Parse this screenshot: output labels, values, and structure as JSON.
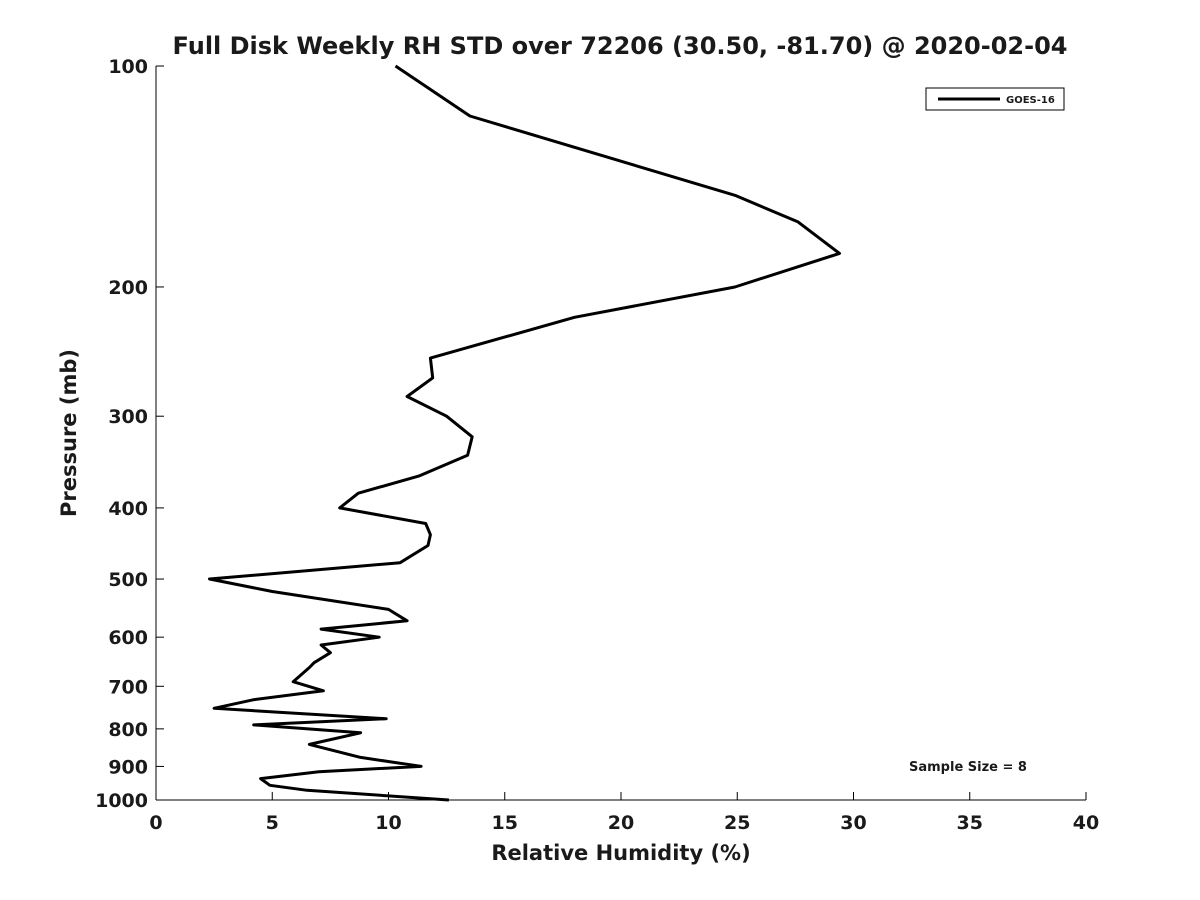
{
  "chart_data": {
    "type": "line",
    "title": "Full Disk Weekly RH STD over 72206 (30.50, -81.70) @ 2020-02-04",
    "xlabel": "Relative Humidity (%)",
    "ylabel": "Pressure (mb)",
    "xlim": [
      0,
      40
    ],
    "ylim": [
      100,
      1000
    ],
    "yscale": "log",
    "y_inverted": true,
    "grid": false,
    "legend_position": "top-right",
    "xticks": [
      "0",
      "5",
      "10",
      "15",
      "20",
      "25",
      "30",
      "35",
      "40"
    ],
    "yticks": [
      "100",
      "200",
      "300",
      "400",
      "500",
      "600",
      "700",
      "800",
      "900",
      "1000"
    ],
    "annotation": "Sample Size = 8",
    "series": [
      {
        "name": "GOES-16",
        "color": "#000000",
        "points": [
          [
            10.3,
            100
          ],
          [
            13.5,
            117
          ],
          [
            24.9,
            150
          ],
          [
            27.6,
            163
          ],
          [
            29.4,
            180
          ],
          [
            24.9,
            200
          ],
          [
            18.0,
            220
          ],
          [
            11.8,
            250
          ],
          [
            11.9,
            266
          ],
          [
            10.8,
            282
          ],
          [
            12.5,
            300
          ],
          [
            13.6,
            320
          ],
          [
            13.4,
            339
          ],
          [
            11.3,
            362
          ],
          [
            8.7,
            382
          ],
          [
            7.9,
            400
          ],
          [
            11.6,
            420
          ],
          [
            11.8,
            435
          ],
          [
            11.7,
            450
          ],
          [
            10.5,
            475
          ],
          [
            2.3,
            500
          ],
          [
            5.0,
            520
          ],
          [
            10.0,
            550
          ],
          [
            10.8,
            570
          ],
          [
            7.1,
            585
          ],
          [
            9.6,
            600
          ],
          [
            7.1,
            615
          ],
          [
            7.5,
            630
          ],
          [
            6.8,
            650
          ],
          [
            6.6,
            660
          ],
          [
            5.9,
            690
          ],
          [
            7.2,
            710
          ],
          [
            4.2,
            730
          ],
          [
            2.5,
            750
          ],
          [
            9.9,
            775
          ],
          [
            4.2,
            790
          ],
          [
            8.8,
            810
          ],
          [
            6.6,
            840
          ],
          [
            8.8,
            875
          ],
          [
            11.4,
            900
          ],
          [
            7.0,
            915
          ],
          [
            4.5,
            935
          ],
          [
            4.9,
            955
          ],
          [
            6.5,
            970
          ],
          [
            12.6,
            1000
          ]
        ]
      }
    ]
  }
}
